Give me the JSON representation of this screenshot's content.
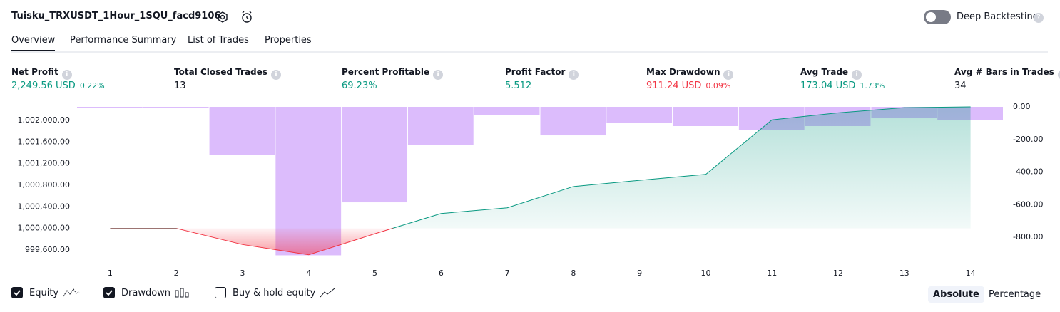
{
  "header": {
    "title": "Tuisku_TRXUSDT_1Hour_1SQU_facd9106",
    "deep_backtesting": "Deep Backtesting"
  },
  "tabs": [
    "Overview",
    "Performance Summary",
    "List of Trades",
    "Properties"
  ],
  "active_tab": 0,
  "metrics": [
    {
      "label": "Net Profit",
      "value": "2,249.56 USD",
      "percent": "0.22%",
      "tone": "positive"
    },
    {
      "label": "Total Closed Trades",
      "value": "13",
      "tone": "neutral"
    },
    {
      "label": "Percent Profitable",
      "value": "69.23%",
      "tone": "positive"
    },
    {
      "label": "Profit Factor",
      "value": "5.512",
      "tone": "positive"
    },
    {
      "label": "Max Drawdown",
      "value": "911.24 USD",
      "percent": "0.09%",
      "tone": "negative"
    },
    {
      "label": "Avg Trade",
      "value": "173.04 USD",
      "percent": "1.73%",
      "tone": "positive"
    },
    {
      "label": "Avg # Bars in Trades",
      "value": "34",
      "tone": "neutral"
    }
  ],
  "chart_data": {
    "type": "combo",
    "categories": [
      "1",
      "2",
      "3",
      "4",
      "5",
      "6",
      "7",
      "8",
      "9",
      "10",
      "11",
      "12",
      "13",
      "14"
    ],
    "series": [
      {
        "name": "Equity",
        "type": "line",
        "axis": "y",
        "color": "#089981",
        "negative_color": "#f23645",
        "baseline": 1000000,
        "values": [
          1000000,
          1000000,
          999700,
          999510,
          999900,
          1000275,
          1000380,
          1000775,
          1000890,
          1001000,
          1002010,
          1002140,
          1002235,
          1002249.56
        ]
      },
      {
        "name": "Drawdown",
        "type": "bar",
        "axis": "y2",
        "color": "#dcbcfc",
        "values": [
          0,
          0,
          -293,
          -911.24,
          -586,
          -232,
          -52,
          -175,
          -100,
          -118,
          -140,
          -118,
          -70,
          -79
        ]
      }
    ],
    "ylim": [
      999480,
      1002250
    ],
    "yticks": [
      {
        "value": 1002000,
        "label": "1,002,000.00"
      },
      {
        "value": 1001600,
        "label": "1,001,600.00"
      },
      {
        "value": 1001200,
        "label": "1,001,200.00"
      },
      {
        "value": 1000800,
        "label": "1,000,800.00"
      },
      {
        "value": 1000400,
        "label": "1,000,400.00"
      },
      {
        "value": 1000000,
        "label": "1,000,000.00"
      },
      {
        "value": 999600,
        "label": "999,600.00"
      }
    ],
    "y2lim": [
      -918,
      0
    ],
    "y2ticks": [
      {
        "value": 0,
        "label": "0.00"
      },
      {
        "value": -200,
        "label": "-200.00"
      },
      {
        "value": -400,
        "label": "-400.00"
      },
      {
        "value": -600,
        "label": "-600.00"
      },
      {
        "value": -800,
        "label": "-800.00"
      }
    ]
  },
  "footer": {
    "buy_hold": "Buy & hold equity",
    "buttons": [
      "Absolute",
      "Percentage"
    ],
    "active_button": 0
  }
}
